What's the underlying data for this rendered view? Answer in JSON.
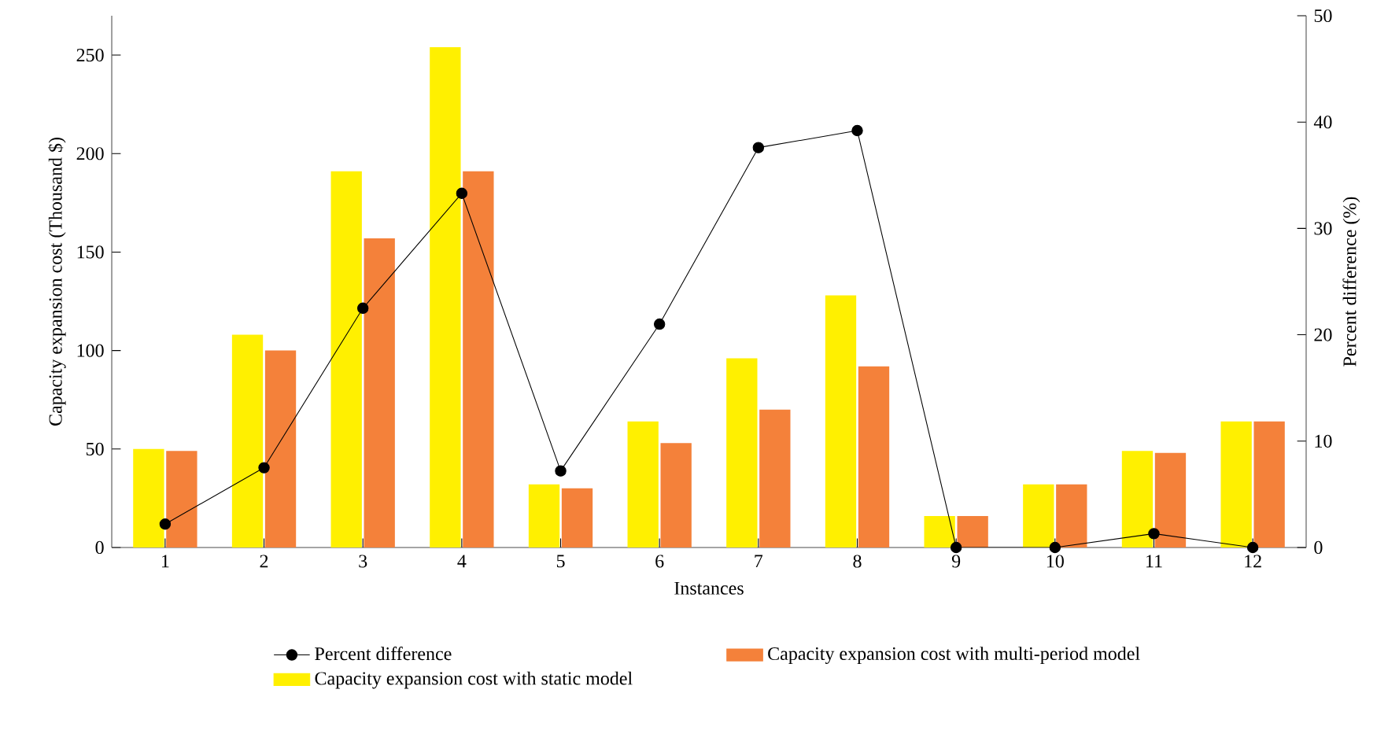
{
  "chart_data": {
    "type": "bar",
    "categories": [
      "1",
      "2",
      "3",
      "4",
      "5",
      "6",
      "7",
      "8",
      "9",
      "10",
      "11",
      "12"
    ],
    "xlabel": "Instances",
    "ylabel": "Capacity expansion cost (Thousand $)",
    "y2label": "Percent difference (%)",
    "ylim": [
      0,
      270
    ],
    "yticks": [
      0,
      50,
      100,
      150,
      200,
      250
    ],
    "y2lim": [
      0,
      50
    ],
    "y2ticks": [
      0,
      10,
      20,
      30,
      40,
      50
    ],
    "legend": "bottom",
    "series": [
      {
        "name": "Capacity expansion cost with static model",
        "color": "#fff000",
        "values": [
          50,
          108,
          191,
          254,
          32,
          64,
          96,
          128,
          16,
          32,
          49,
          64
        ]
      },
      {
        "name": "Capacity expansion cost with multi-period model",
        "color": "#f4813a",
        "values": [
          49,
          100,
          157,
          191,
          30,
          53,
          70,
          92,
          16,
          32,
          48,
          64
        ]
      },
      {
        "name": "Percent difference",
        "type": "line",
        "axis": "y2",
        "color": "#000000",
        "marker": "circle",
        "line_style": "solid",
        "values": [
          2.2,
          7.5,
          22.5,
          33.3,
          7.2,
          21,
          37.6,
          39.2,
          0,
          0,
          1.3,
          0
        ]
      }
    ]
  }
}
